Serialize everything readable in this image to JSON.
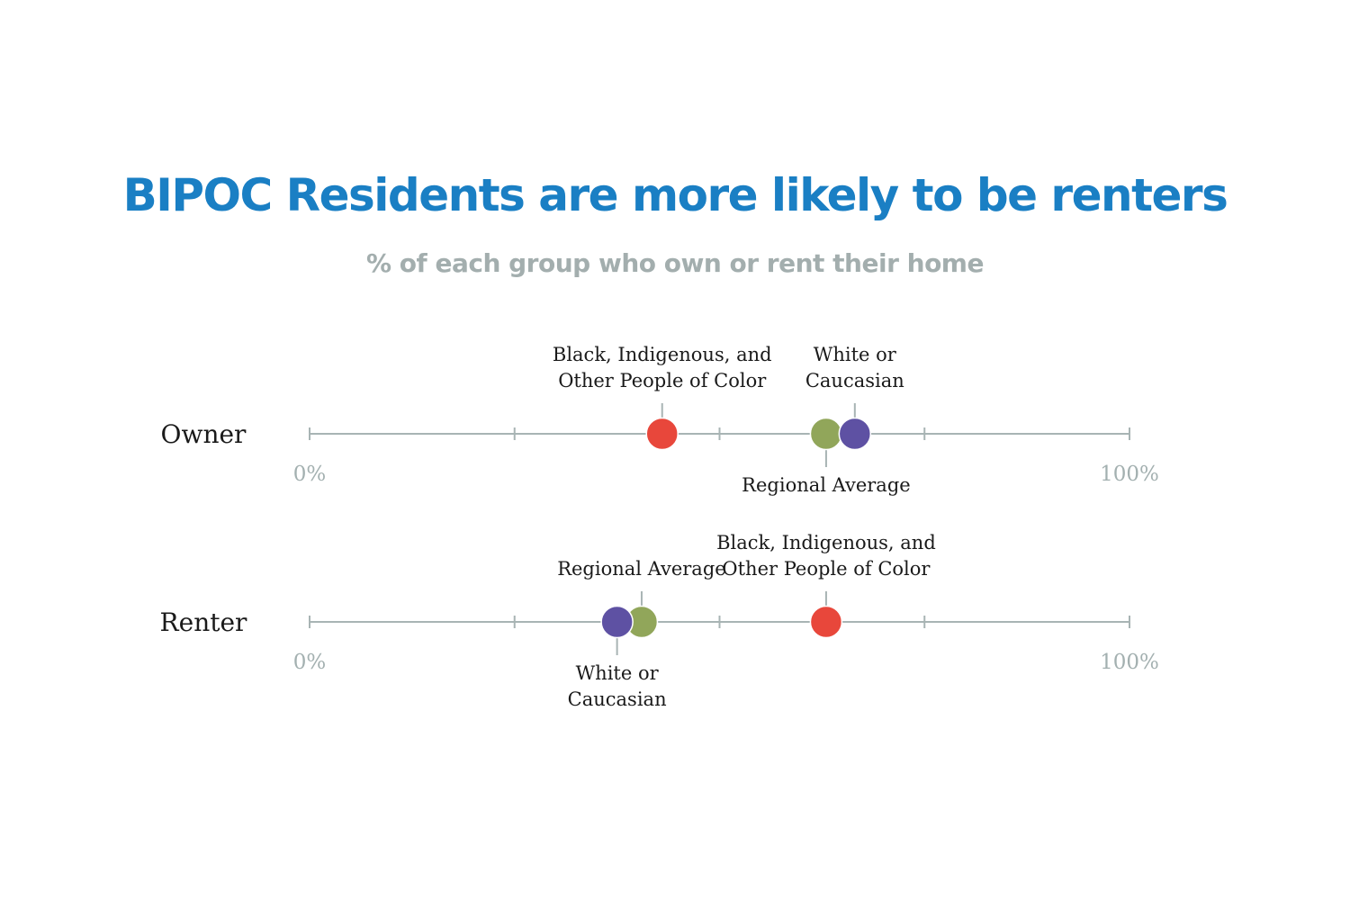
{
  "chart_data": {
    "type": "scatter",
    "title": "BIPOC Residents are more likely to be renters",
    "subtitle": "% of each group who own or rent their home",
    "xlim": [
      0,
      100
    ],
    "tick_labels": [
      "0%",
      "100%"
    ],
    "rows": [
      {
        "label": "Owner",
        "points": [
          {
            "series": "Black, Indigenous, and Other People of Color",
            "value": 43,
            "annotation": [
              "Black, Indigenous, and",
              "Other People of Color"
            ],
            "annotation_side": "above"
          },
          {
            "series": "Regional Average",
            "value": 63,
            "annotation": [
              "Regional Average"
            ],
            "annotation_side": "below"
          },
          {
            "series": "White or Caucasian",
            "value": 66.5,
            "annotation": [
              "White or",
              "Caucasian"
            ],
            "annotation_side": "above"
          }
        ]
      },
      {
        "label": "Renter",
        "points": [
          {
            "series": "Regional Average",
            "value": 40.5,
            "annotation": [
              "Regional Average"
            ],
            "annotation_side": "above"
          },
          {
            "series": "White or Caucasian",
            "value": 37.5,
            "annotation": [
              "White or",
              "Caucasian"
            ],
            "annotation_side": "below"
          },
          {
            "series": "Black, Indigenous, and Other People of Color",
            "value": 63,
            "annotation": [
              "Black, Indigenous, and",
              "Other People of Color"
            ],
            "annotation_side": "above"
          }
        ]
      }
    ],
    "series_colors": {
      "Black, Indigenous, and Other People of Color": "#e8473b",
      "Regional Average": "#91a65a",
      "White or Caucasian": "#5e51a3"
    },
    "grid": false,
    "legend": "none"
  },
  "colors": {
    "title": "#1a7fc4",
    "subtitle": "#a3aeae",
    "axis": "#a8b4b4",
    "tick_label": "#a3b0b0"
  }
}
